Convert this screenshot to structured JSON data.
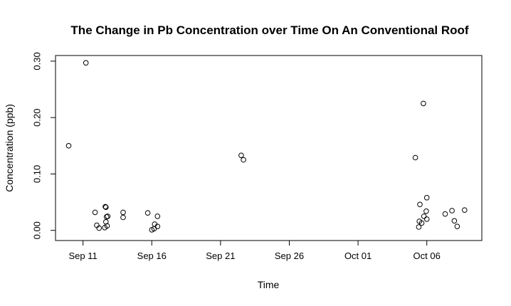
{
  "chart_data": {
    "type": "scatter",
    "title": "The Change in Pb Concentration over Time On An Conventional Roof",
    "xlabel": "Time",
    "ylabel": "Concentration (ppb)",
    "x_axis_kind": "date",
    "xlim": [
      "2013-09-09T00:00",
      "2013-10-10T00:00"
    ],
    "ylim": [
      -0.018,
      0.31
    ],
    "x_ticks": [
      {
        "value": "2013-09-11",
        "label": "Sep 11"
      },
      {
        "value": "2013-09-16",
        "label": "Sep 16"
      },
      {
        "value": "2013-09-21",
        "label": "Sep 21"
      },
      {
        "value": "2013-09-26",
        "label": "Sep 26"
      },
      {
        "value": "2013-10-01",
        "label": "Oct 01"
      },
      {
        "value": "2013-10-06",
        "label": "Oct 06"
      }
    ],
    "y_ticks": [
      {
        "value": 0.0,
        "label": "0.00"
      },
      {
        "value": 0.1,
        "label": "0.10"
      },
      {
        "value": 0.2,
        "label": "0.20"
      },
      {
        "value": 0.3,
        "label": "0.30"
      }
    ],
    "grid": false,
    "legend": "none",
    "marker": "open-circle",
    "points": [
      {
        "x": "2013-09-09T23:00",
        "y": 0.15
      },
      {
        "x": "2013-09-11T05:00",
        "y": 0.297
      },
      {
        "x": "2013-09-11T21:00",
        "y": 0.032
      },
      {
        "x": "2013-09-12T00:00",
        "y": 0.009
      },
      {
        "x": "2013-09-12T04:00",
        "y": 0.004
      },
      {
        "x": "2013-09-12T15:00",
        "y": 0.042
      },
      {
        "x": "2013-09-12T16:00",
        "y": 0.041
      },
      {
        "x": "2013-09-12T17:00",
        "y": 0.024
      },
      {
        "x": "2013-09-12T19:00",
        "y": 0.025
      },
      {
        "x": "2013-09-12T16:00",
        "y": 0.015
      },
      {
        "x": "2013-09-12T14:00",
        "y": 0.005
      },
      {
        "x": "2013-09-12T18:00",
        "y": 0.008
      },
      {
        "x": "2013-09-13T22:00",
        "y": 0.032
      },
      {
        "x": "2013-09-13T22:00",
        "y": 0.023
      },
      {
        "x": "2013-09-15T17:00",
        "y": 0.031
      },
      {
        "x": "2013-09-16T00:00",
        "y": 0.001
      },
      {
        "x": "2013-09-16T04:00",
        "y": 0.003
      },
      {
        "x": "2013-09-16T05:00",
        "y": 0.011
      },
      {
        "x": "2013-09-16T10:00",
        "y": 0.007
      },
      {
        "x": "2013-09-16T10:00",
        "y": 0.025
      },
      {
        "x": "2013-09-22T12:00",
        "y": 0.133
      },
      {
        "x": "2013-09-22T16:00",
        "y": 0.125
      },
      {
        "x": "2013-10-05T04:00",
        "y": 0.129
      },
      {
        "x": "2013-10-05T11:00",
        "y": 0.016
      },
      {
        "x": "2013-10-05T10:00",
        "y": 0.006
      },
      {
        "x": "2013-10-05T12:00",
        "y": 0.046
      },
      {
        "x": "2013-10-05T15:00",
        "y": 0.013
      },
      {
        "x": "2013-10-05T18:00",
        "y": 0.225
      },
      {
        "x": "2013-10-05T19:00",
        "y": 0.025
      },
      {
        "x": "2013-10-05T23:00",
        "y": 0.034
      },
      {
        "x": "2013-10-06T00:00",
        "y": 0.058
      },
      {
        "x": "2013-10-06T00:00",
        "y": 0.02
      },
      {
        "x": "2013-10-07T08:00",
        "y": 0.029
      },
      {
        "x": "2013-10-07T20:00",
        "y": 0.035
      },
      {
        "x": "2013-10-08T00:00",
        "y": 0.017
      },
      {
        "x": "2013-10-08T05:00",
        "y": 0.007
      },
      {
        "x": "2013-10-08T18:00",
        "y": 0.036
      }
    ]
  }
}
